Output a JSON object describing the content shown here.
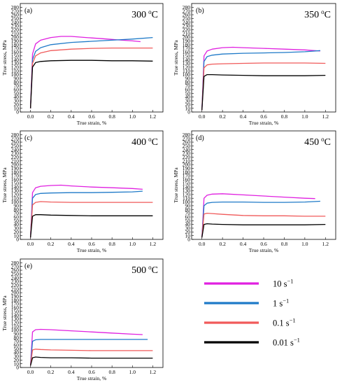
{
  "colors": {
    "10": "#e020e0",
    "1": "#1f7ac8",
    "0.1": "#f05a5a",
    "0.01": "#000000"
  },
  "legend": [
    {
      "key": "10",
      "label": "10 s",
      "exp": "−1"
    },
    {
      "key": "1",
      "label": "1 s",
      "exp": "−1"
    },
    {
      "key": "0.1",
      "label": "0.1 s",
      "exp": "−1"
    },
    {
      "key": "0.01",
      "label": "0.01 s",
      "exp": "−1"
    }
  ],
  "chart_data": [
    {
      "type": "line",
      "panel": "(a)",
      "temp_value": "300",
      "temp_unit": "o",
      "temp_unit2": "C",
      "xlabel": "True strain, %",
      "ylabel": "True stress, MPa",
      "xlim": [
        -0.1,
        1.3
      ],
      "ylim": [
        0,
        290
      ],
      "xticks": [
        0.0,
        0.2,
        0.4,
        0.6,
        0.8,
        1.0,
        1.2
      ],
      "yticks": [
        0,
        10,
        20,
        30,
        40,
        50,
        60,
        70,
        80,
        90,
        100,
        110,
        120,
        130,
        140,
        150,
        160,
        170,
        180,
        190,
        200,
        210,
        220,
        230,
        240,
        250,
        260,
        270,
        280
      ],
      "series": [
        {
          "key": "10",
          "x": [
            0,
            0.02,
            0.05,
            0.1,
            0.2,
            0.3,
            0.4,
            0.5,
            0.6,
            0.7,
            0.8,
            0.9,
            1.0,
            1.08
          ],
          "y": [
            10,
            155,
            182,
            192,
            199,
            202,
            202,
            200,
            198,
            196,
            194,
            192,
            190,
            188
          ]
        },
        {
          "key": "1",
          "x": [
            0,
            0.02,
            0.05,
            0.1,
            0.2,
            0.4,
            0.6,
            0.8,
            1.0,
            1.2
          ],
          "y": [
            10,
            140,
            162,
            172,
            180,
            186,
            189,
            192,
            195,
            199
          ]
        },
        {
          "key": "0.1",
          "x": [
            0,
            0.02,
            0.05,
            0.1,
            0.2,
            0.4,
            0.6,
            0.8,
            1.0,
            1.2
          ],
          "y": [
            10,
            130,
            150,
            158,
            164,
            168,
            170,
            171,
            171,
            171
          ]
        },
        {
          "key": "0.01",
          "x": [
            0,
            0.02,
            0.05,
            0.1,
            0.2,
            0.4,
            0.6,
            0.8,
            1.0,
            1.2
          ],
          "y": [
            10,
            120,
            132,
            135,
            137,
            138,
            138,
            137,
            137,
            136
          ]
        }
      ]
    },
    {
      "type": "line",
      "panel": "(b)",
      "temp_value": "350",
      "temp_unit": "o",
      "temp_unit2": "C",
      "xlabel": "True strain, %",
      "ylabel": "True stress, MPa",
      "xlim": [
        -0.1,
        1.3
      ],
      "ylim": [
        0,
        290
      ],
      "xticks": [
        0.0,
        0.2,
        0.4,
        0.6,
        0.8,
        1.0,
        1.2
      ],
      "yticks": [
        0,
        10,
        20,
        30,
        40,
        50,
        60,
        70,
        80,
        90,
        100,
        110,
        120,
        130,
        140,
        150,
        160,
        170,
        180,
        190,
        200,
        210,
        220,
        230,
        240,
        250,
        260,
        270,
        280
      ],
      "series": [
        {
          "key": "10",
          "x": [
            0,
            0.02,
            0.05,
            0.1,
            0.2,
            0.3,
            0.4,
            0.6,
            0.8,
            1.0,
            1.15
          ],
          "y": [
            5,
            150,
            163,
            168,
            172,
            173,
            172,
            170,
            168,
            166,
            163
          ]
        },
        {
          "key": "1",
          "x": [
            0,
            0.02,
            0.05,
            0.1,
            0.2,
            0.4,
            0.6,
            0.8,
            1.0,
            1.15
          ],
          "y": [
            5,
            135,
            148,
            152,
            155,
            157,
            158,
            159,
            161,
            164
          ]
        },
        {
          "key": "0.1",
          "x": [
            0,
            0.02,
            0.05,
            0.1,
            0.2,
            0.4,
            0.6,
            0.8,
            1.0,
            1.2
          ],
          "y": [
            5,
            118,
            126,
            128,
            129,
            130,
            131,
            131,
            131,
            130
          ]
        },
        {
          "key": "0.01",
          "x": [
            0,
            0.02,
            0.05,
            0.1,
            0.2,
            0.4,
            0.6,
            0.8,
            1.0,
            1.2
          ],
          "y": [
            5,
            95,
            100,
            100,
            99,
            98,
            97,
            97,
            97,
            98
          ]
        }
      ]
    },
    {
      "type": "line",
      "panel": "(c)",
      "temp_value": "400",
      "temp_unit": "o",
      "temp_unit2": "C",
      "xlabel": "True strain, %",
      "ylabel": "True stress, MPa",
      "xlim": [
        -0.1,
        1.3
      ],
      "ylim": [
        0,
        290
      ],
      "xticks": [
        0.0,
        0.2,
        0.4,
        0.6,
        0.8,
        1.0,
        1.2
      ],
      "yticks": [
        0,
        10,
        20,
        30,
        40,
        50,
        60,
        70,
        80,
        90,
        100,
        110,
        120,
        130,
        140,
        150,
        160,
        170,
        180,
        190,
        200,
        210,
        220,
        230,
        240,
        250,
        260,
        270,
        280
      ],
      "series": [
        {
          "key": "10",
          "x": [
            0,
            0.02,
            0.05,
            0.1,
            0.2,
            0.3,
            0.4,
            0.6,
            0.8,
            1.0,
            1.1
          ],
          "y": [
            5,
            125,
            138,
            142,
            144,
            145,
            143,
            140,
            138,
            136,
            134
          ]
        },
        {
          "key": "1",
          "x": [
            0,
            0.02,
            0.05,
            0.1,
            0.2,
            0.4,
            0.6,
            0.8,
            1.0,
            1.1
          ],
          "y": [
            5,
            110,
            120,
            123,
            124,
            125,
            125,
            126,
            127,
            129
          ]
        },
        {
          "key": "0.1",
          "x": [
            0,
            0.02,
            0.05,
            0.1,
            0.2,
            0.4,
            0.6,
            0.8,
            1.0,
            1.2
          ],
          "y": [
            5,
            92,
            99,
            101,
            100,
            99,
            99,
            99,
            99,
            99
          ]
        },
        {
          "key": "0.01",
          "x": [
            0,
            0.02,
            0.05,
            0.1,
            0.2,
            0.4,
            0.6,
            0.8,
            1.0,
            1.2
          ],
          "y": [
            5,
            62,
            66,
            66,
            65,
            64,
            63,
            63,
            63,
            63
          ]
        }
      ]
    },
    {
      "type": "line",
      "panel": "(d)",
      "temp_value": "450",
      "temp_unit": "o",
      "temp_unit2": "C",
      "xlabel": "True strain, %",
      "ylabel": "True stress, MPa",
      "xlim": [
        -0.1,
        1.3
      ],
      "ylim": [
        0,
        290
      ],
      "xticks": [
        0.0,
        0.2,
        0.4,
        0.6,
        0.8,
        1.0,
        1.2
      ],
      "yticks": [
        0,
        10,
        20,
        30,
        40,
        50,
        60,
        70,
        80,
        90,
        100,
        110,
        120,
        130,
        140,
        150,
        160,
        170,
        180,
        190,
        200,
        210,
        220,
        230,
        240,
        250,
        260,
        270,
        280
      ],
      "series": [
        {
          "key": "10",
          "x": [
            0,
            0.02,
            0.05,
            0.1,
            0.2,
            0.4,
            0.6,
            0.8,
            1.0,
            1.1
          ],
          "y": [
            5,
            110,
            118,
            121,
            122,
            119,
            116,
            113,
            110,
            109
          ]
        },
        {
          "key": "1",
          "x": [
            0,
            0.02,
            0.05,
            0.1,
            0.2,
            0.4,
            0.6,
            0.8,
            1.0,
            1.15
          ],
          "y": [
            5,
            90,
            97,
            99,
            100,
            100,
            99,
            99,
            100,
            102
          ]
        },
        {
          "key": "0.1",
          "x": [
            0,
            0.02,
            0.05,
            0.1,
            0.2,
            0.4,
            0.6,
            0.8,
            1.0,
            1.2
          ],
          "y": [
            5,
            68,
            70,
            69,
            67,
            64,
            63,
            63,
            62,
            62
          ]
        },
        {
          "key": "0.01",
          "x": [
            0,
            0.02,
            0.05,
            0.1,
            0.2,
            0.4,
            0.6,
            0.8,
            1.0,
            1.2
          ],
          "y": [
            5,
            40,
            42,
            41,
            40,
            39,
            39,
            39,
            39,
            40
          ]
        }
      ]
    },
    {
      "type": "line",
      "panel": "(e)",
      "temp_value": "500",
      "temp_unit": "o",
      "temp_unit2": "C",
      "xlabel": "True strain, %",
      "ylabel": "True stress, MPa",
      "xlim": [
        -0.1,
        1.3
      ],
      "ylim": [
        0,
        290
      ],
      "xticks": [
        0.0,
        0.2,
        0.4,
        0.6,
        0.8,
        1.0,
        1.2
      ],
      "yticks": [
        0,
        10,
        20,
        30,
        40,
        50,
        60,
        70,
        80,
        90,
        100,
        110,
        120,
        130,
        140,
        150,
        160,
        170,
        180,
        190,
        200,
        210,
        220,
        230,
        240,
        250,
        260,
        270,
        280
      ],
      "series": [
        {
          "key": "10",
          "x": [
            0,
            0.02,
            0.05,
            0.1,
            0.2,
            0.4,
            0.6,
            0.8,
            1.0,
            1.1
          ],
          "y": [
            5,
            95,
            101,
            102,
            101,
            98,
            95,
            92,
            89,
            88
          ]
        },
        {
          "key": "1",
          "x": [
            0,
            0.02,
            0.05,
            0.1,
            0.2,
            0.4,
            0.6,
            0.8,
            1.0,
            1.15
          ],
          "y": [
            5,
            70,
            74,
            75,
            75,
            75,
            75,
            75,
            75,
            75
          ]
        },
        {
          "key": "0.1",
          "x": [
            0,
            0.02,
            0.05,
            0.1,
            0.2,
            0.4,
            0.6,
            0.8,
            1.0,
            1.2
          ],
          "y": [
            5,
            47,
            49,
            48,
            47,
            46,
            45,
            45,
            45,
            45
          ]
        },
        {
          "key": "0.01",
          "x": [
            0,
            0.02,
            0.05,
            0.1,
            0.2,
            0.4,
            0.6,
            0.8,
            1.0,
            1.2
          ],
          "y": [
            5,
            26,
            28,
            27,
            26,
            26,
            25,
            25,
            25,
            25
          ]
        }
      ]
    }
  ]
}
